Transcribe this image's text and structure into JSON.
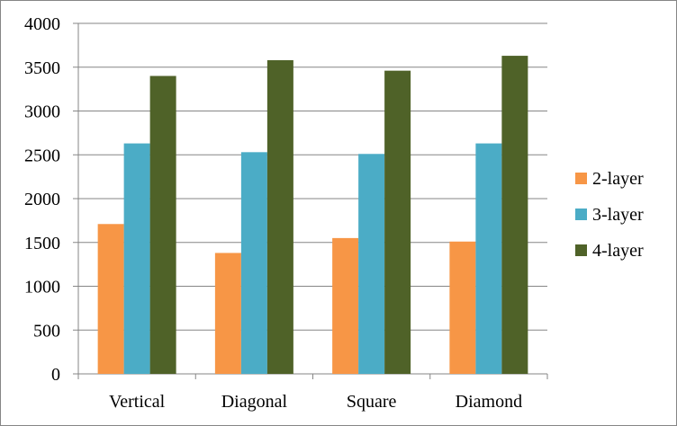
{
  "chart_data": {
    "type": "bar",
    "title": "",
    "xlabel": "",
    "ylabel": "",
    "categories": [
      "Vertical",
      "Diagonal",
      "Square",
      "Diamond"
    ],
    "series": [
      {
        "name": "2-layer",
        "color": "#F79646",
        "values": [
          1710,
          1380,
          1550,
          1510
        ]
      },
      {
        "name": "3-layer",
        "color": "#4BACC6",
        "values": [
          2630,
          2530,
          2510,
          2630
        ]
      },
      {
        "name": "4-layer",
        "color": "#4F6228",
        "values": [
          3400,
          3580,
          3460,
          3630
        ]
      }
    ],
    "ylim": [
      0,
      4000
    ],
    "yticks": [
      "0",
      "500",
      "1000",
      "1500",
      "2000",
      "2500",
      "3000",
      "3500",
      "4000"
    ],
    "grid": true,
    "legend": "right"
  }
}
